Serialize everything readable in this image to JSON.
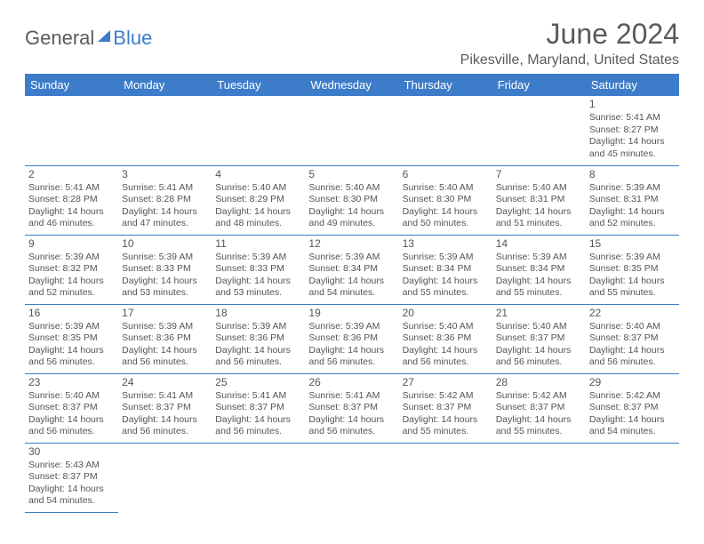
{
  "brand": {
    "part1": "General",
    "part2": "Blue"
  },
  "title": "June 2024",
  "location": "Pikesville, Maryland, United States",
  "calendar": {
    "header_bg": "#3d7cc9",
    "header_fg": "#ffffff",
    "border_color": "#3d7cc9",
    "day_headers": [
      "Sunday",
      "Monday",
      "Tuesday",
      "Wednesday",
      "Thursday",
      "Friday",
      "Saturday"
    ],
    "leading_blanks": 6,
    "days": [
      {
        "n": "1",
        "sunrise": "Sunrise: 5:41 AM",
        "sunset": "Sunset: 8:27 PM",
        "daylight": "Daylight: 14 hours and 45 minutes."
      },
      {
        "n": "2",
        "sunrise": "Sunrise: 5:41 AM",
        "sunset": "Sunset: 8:28 PM",
        "daylight": "Daylight: 14 hours and 46 minutes."
      },
      {
        "n": "3",
        "sunrise": "Sunrise: 5:41 AM",
        "sunset": "Sunset: 8:28 PM",
        "daylight": "Daylight: 14 hours and 47 minutes."
      },
      {
        "n": "4",
        "sunrise": "Sunrise: 5:40 AM",
        "sunset": "Sunset: 8:29 PM",
        "daylight": "Daylight: 14 hours and 48 minutes."
      },
      {
        "n": "5",
        "sunrise": "Sunrise: 5:40 AM",
        "sunset": "Sunset: 8:30 PM",
        "daylight": "Daylight: 14 hours and 49 minutes."
      },
      {
        "n": "6",
        "sunrise": "Sunrise: 5:40 AM",
        "sunset": "Sunset: 8:30 PM",
        "daylight": "Daylight: 14 hours and 50 minutes."
      },
      {
        "n": "7",
        "sunrise": "Sunrise: 5:40 AM",
        "sunset": "Sunset: 8:31 PM",
        "daylight": "Daylight: 14 hours and 51 minutes."
      },
      {
        "n": "8",
        "sunrise": "Sunrise: 5:39 AM",
        "sunset": "Sunset: 8:31 PM",
        "daylight": "Daylight: 14 hours and 52 minutes."
      },
      {
        "n": "9",
        "sunrise": "Sunrise: 5:39 AM",
        "sunset": "Sunset: 8:32 PM",
        "daylight": "Daylight: 14 hours and 52 minutes."
      },
      {
        "n": "10",
        "sunrise": "Sunrise: 5:39 AM",
        "sunset": "Sunset: 8:33 PM",
        "daylight": "Daylight: 14 hours and 53 minutes."
      },
      {
        "n": "11",
        "sunrise": "Sunrise: 5:39 AM",
        "sunset": "Sunset: 8:33 PM",
        "daylight": "Daylight: 14 hours and 53 minutes."
      },
      {
        "n": "12",
        "sunrise": "Sunrise: 5:39 AM",
        "sunset": "Sunset: 8:34 PM",
        "daylight": "Daylight: 14 hours and 54 minutes."
      },
      {
        "n": "13",
        "sunrise": "Sunrise: 5:39 AM",
        "sunset": "Sunset: 8:34 PM",
        "daylight": "Daylight: 14 hours and 55 minutes."
      },
      {
        "n": "14",
        "sunrise": "Sunrise: 5:39 AM",
        "sunset": "Sunset: 8:34 PM",
        "daylight": "Daylight: 14 hours and 55 minutes."
      },
      {
        "n": "15",
        "sunrise": "Sunrise: 5:39 AM",
        "sunset": "Sunset: 8:35 PM",
        "daylight": "Daylight: 14 hours and 55 minutes."
      },
      {
        "n": "16",
        "sunrise": "Sunrise: 5:39 AM",
        "sunset": "Sunset: 8:35 PM",
        "daylight": "Daylight: 14 hours and 56 minutes."
      },
      {
        "n": "17",
        "sunrise": "Sunrise: 5:39 AM",
        "sunset": "Sunset: 8:36 PM",
        "daylight": "Daylight: 14 hours and 56 minutes."
      },
      {
        "n": "18",
        "sunrise": "Sunrise: 5:39 AM",
        "sunset": "Sunset: 8:36 PM",
        "daylight": "Daylight: 14 hours and 56 minutes."
      },
      {
        "n": "19",
        "sunrise": "Sunrise: 5:39 AM",
        "sunset": "Sunset: 8:36 PM",
        "daylight": "Daylight: 14 hours and 56 minutes."
      },
      {
        "n": "20",
        "sunrise": "Sunrise: 5:40 AM",
        "sunset": "Sunset: 8:36 PM",
        "daylight": "Daylight: 14 hours and 56 minutes."
      },
      {
        "n": "21",
        "sunrise": "Sunrise: 5:40 AM",
        "sunset": "Sunset: 8:37 PM",
        "daylight": "Daylight: 14 hours and 56 minutes."
      },
      {
        "n": "22",
        "sunrise": "Sunrise: 5:40 AM",
        "sunset": "Sunset: 8:37 PM",
        "daylight": "Daylight: 14 hours and 56 minutes."
      },
      {
        "n": "23",
        "sunrise": "Sunrise: 5:40 AM",
        "sunset": "Sunset: 8:37 PM",
        "daylight": "Daylight: 14 hours and 56 minutes."
      },
      {
        "n": "24",
        "sunrise": "Sunrise: 5:41 AM",
        "sunset": "Sunset: 8:37 PM",
        "daylight": "Daylight: 14 hours and 56 minutes."
      },
      {
        "n": "25",
        "sunrise": "Sunrise: 5:41 AM",
        "sunset": "Sunset: 8:37 PM",
        "daylight": "Daylight: 14 hours and 56 minutes."
      },
      {
        "n": "26",
        "sunrise": "Sunrise: 5:41 AM",
        "sunset": "Sunset: 8:37 PM",
        "daylight": "Daylight: 14 hours and 56 minutes."
      },
      {
        "n": "27",
        "sunrise": "Sunrise: 5:42 AM",
        "sunset": "Sunset: 8:37 PM",
        "daylight": "Daylight: 14 hours and 55 minutes."
      },
      {
        "n": "28",
        "sunrise": "Sunrise: 5:42 AM",
        "sunset": "Sunset: 8:37 PM",
        "daylight": "Daylight: 14 hours and 55 minutes."
      },
      {
        "n": "29",
        "sunrise": "Sunrise: 5:42 AM",
        "sunset": "Sunset: 8:37 PM",
        "daylight": "Daylight: 14 hours and 54 minutes."
      },
      {
        "n": "30",
        "sunrise": "Sunrise: 5:43 AM",
        "sunset": "Sunset: 8:37 PM",
        "daylight": "Daylight: 14 hours and 54 minutes."
      }
    ]
  }
}
